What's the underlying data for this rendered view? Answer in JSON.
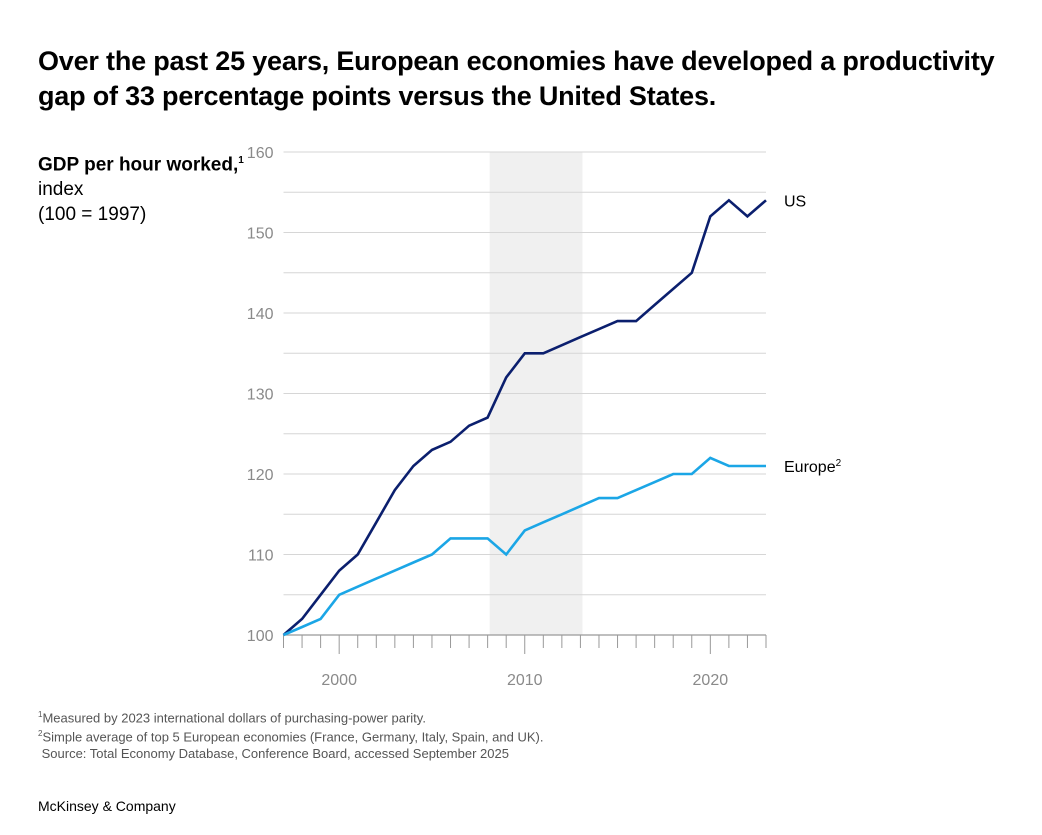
{
  "title": "Over the past 25 years, European economies have developed a productivity gap of 33 percentage points versus the United States.",
  "chart_data": {
    "type": "line",
    "ylabel": {
      "bold": "GDP per hour worked,",
      "sup": "1",
      "line2": "index",
      "line3": "(100 = 1997)"
    },
    "x": [
      1997,
      1998,
      1999,
      2000,
      2001,
      2002,
      2003,
      2004,
      2005,
      2006,
      2007,
      2008,
      2009,
      2010,
      2011,
      2012,
      2013,
      2014,
      2015,
      2016,
      2017,
      2018,
      2019,
      2020,
      2021,
      2022,
      2023
    ],
    "series": [
      {
        "name": "US",
        "sup": "",
        "color": "#0b1f6e",
        "values": [
          100,
          102,
          105,
          108,
          110,
          114,
          118,
          121,
          123,
          124,
          126,
          127,
          132,
          135,
          135,
          136,
          137,
          138,
          139,
          139,
          141,
          143,
          145,
          152,
          154,
          152,
          154
        ]
      },
      {
        "name": "Europe",
        "sup": "2",
        "color": "#1ba6e6",
        "values": [
          100,
          101,
          102,
          105,
          106,
          107,
          108,
          109,
          110,
          112,
          112,
          112,
          110,
          113,
          114,
          115,
          116,
          117,
          117,
          118,
          119,
          120,
          120,
          122,
          121,
          121,
          121
        ]
      }
    ],
    "ylim": [
      100,
      160
    ],
    "yticks": [
      100,
      110,
      120,
      130,
      140,
      150,
      160
    ],
    "xlim": [
      1997,
      2023
    ],
    "xticks": [
      2000,
      2010,
      2020
    ],
    "shaded_period": [
      2008,
      2013
    ],
    "shade_color": "#f0f0f0",
    "grid": true,
    "legend": "inline-right"
  },
  "footnotes": [
    {
      "sup": "1",
      "text": "Measured by 2023 international dollars of purchasing-power parity."
    },
    {
      "sup": "2",
      "text": "Simple average of top 5 European economies (France, Germany, Italy, Spain, and UK)."
    },
    {
      "sup": "",
      "text": " Source: Total Economy Database, Conference Board, accessed September 2025"
    }
  ],
  "brand": "McKinsey & Company"
}
